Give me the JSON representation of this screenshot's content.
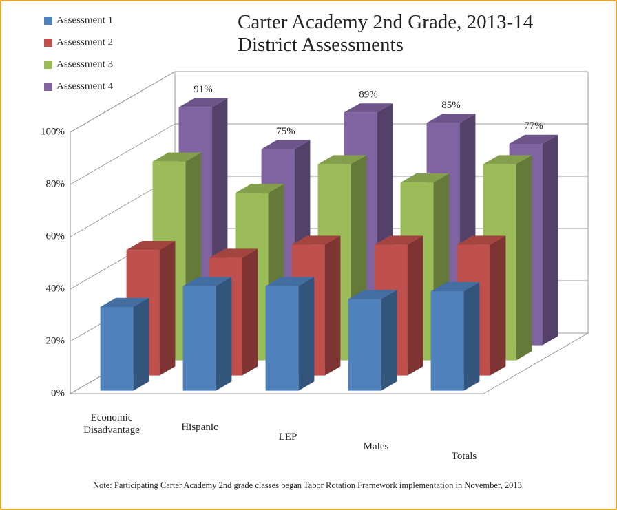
{
  "chart_data": {
    "type": "bar3d",
    "title": "Carter Academy 2nd Grade, 2013-14 District Assessments",
    "note": "Note: Participating Carter Academy 2nd grade classes began Tabor Rotation Framework implementation in November, 2013.",
    "categories": [
      "Economic Disadvantage",
      "Hispanic",
      "LEP",
      "Males",
      "Totals"
    ],
    "series": [
      {
        "name": "Assessment 1",
        "color": "#4f81bd",
        "values": [
          32,
          40,
          40,
          35,
          38
        ]
      },
      {
        "name": "Assessment 2",
        "color": "#c0504d",
        "values": [
          48,
          45,
          50,
          50,
          50
        ]
      },
      {
        "name": "Assessment 3",
        "color": "#9bbb59",
        "values": [
          76,
          64,
          75,
          68,
          75
        ]
      },
      {
        "name": "Assessment 4",
        "color": "#8064a2",
        "values": [
          91,
          75,
          89,
          85,
          77
        ],
        "value_labels": [
          "91%",
          "75%",
          "89%",
          "85%",
          "77%"
        ]
      }
    ],
    "ylim": [
      0,
      100
    ],
    "yticks": [
      {
        "value": 0,
        "label": "0%"
      },
      {
        "value": 20,
        "label": "20%"
      },
      {
        "value": 40,
        "label": "40%"
      },
      {
        "value": 60,
        "label": "60%"
      },
      {
        "value": 80,
        "label": "80%"
      },
      {
        "value": 100,
        "label": "100%"
      }
    ],
    "grid": true,
    "legend": "top-left"
  }
}
